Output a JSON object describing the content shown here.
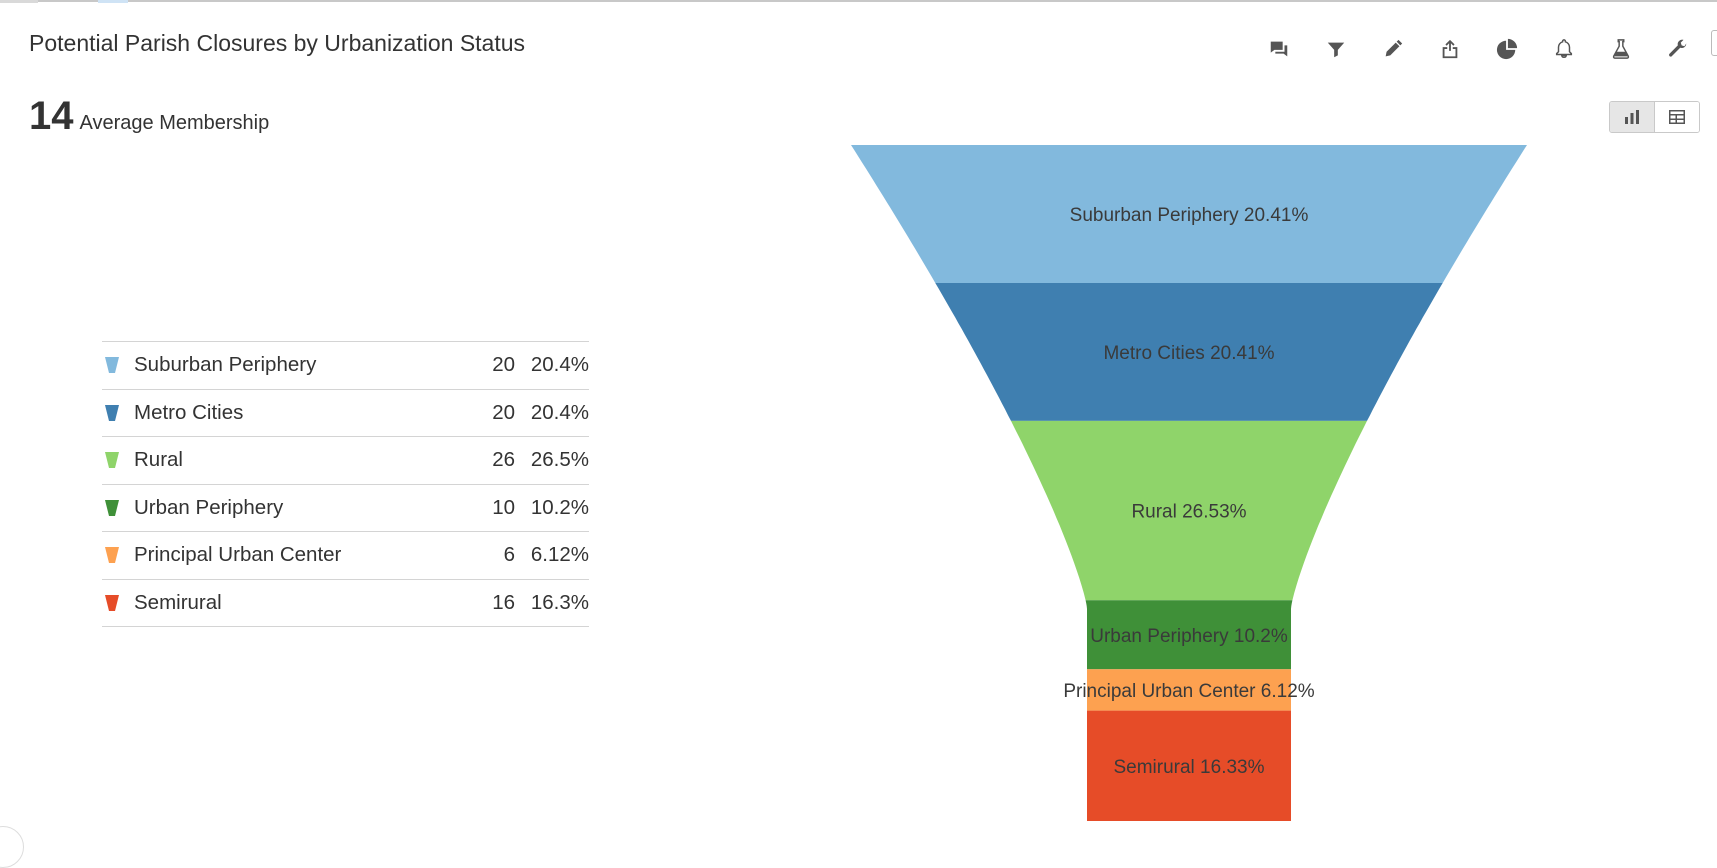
{
  "title": "Potential Parish Closures by Urbanization Status",
  "metric": {
    "value": "14",
    "label": "Average Membership"
  },
  "toolbar": {
    "icons": [
      "comment-icon",
      "filter-icon",
      "pencil-icon",
      "share-icon",
      "pie-chart-icon",
      "bell-icon",
      "flask-icon",
      "wrench-icon"
    ]
  },
  "view_toggle": {
    "options": [
      "chart-view-icon",
      "table-view-icon"
    ],
    "selected": "chart-view-icon"
  },
  "legend": [
    {
      "label": "Suburban Periphery",
      "count": "20",
      "pct": "20.4%"
    },
    {
      "label": "Metro Cities",
      "count": "20",
      "pct": "20.4%"
    },
    {
      "label": "Rural",
      "count": "26",
      "pct": "26.5%"
    },
    {
      "label": "Urban Periphery",
      "count": "10",
      "pct": "10.2%"
    },
    {
      "label": "Principal Urban Center",
      "count": "6",
      "pct": "6.12%"
    },
    {
      "label": "Semirural",
      "count": "16",
      "pct": "16.3%"
    }
  ],
  "chart_data": {
    "type": "funnel",
    "categories": [
      "Suburban Periphery",
      "Metro Cities",
      "Rural",
      "Urban Periphery",
      "Principal Urban Center",
      "Semirural"
    ],
    "values": [
      20,
      20,
      26,
      10,
      6,
      16
    ],
    "percent_labels": [
      "20.41%",
      "20.41%",
      "26.53%",
      "10.2%",
      "6.12%",
      "16.33%"
    ],
    "colors": [
      "#82b9dd",
      "#3f7fb0",
      "#8fd46a",
      "#3f9038",
      "#fda150",
      "#e64c28"
    ]
  }
}
